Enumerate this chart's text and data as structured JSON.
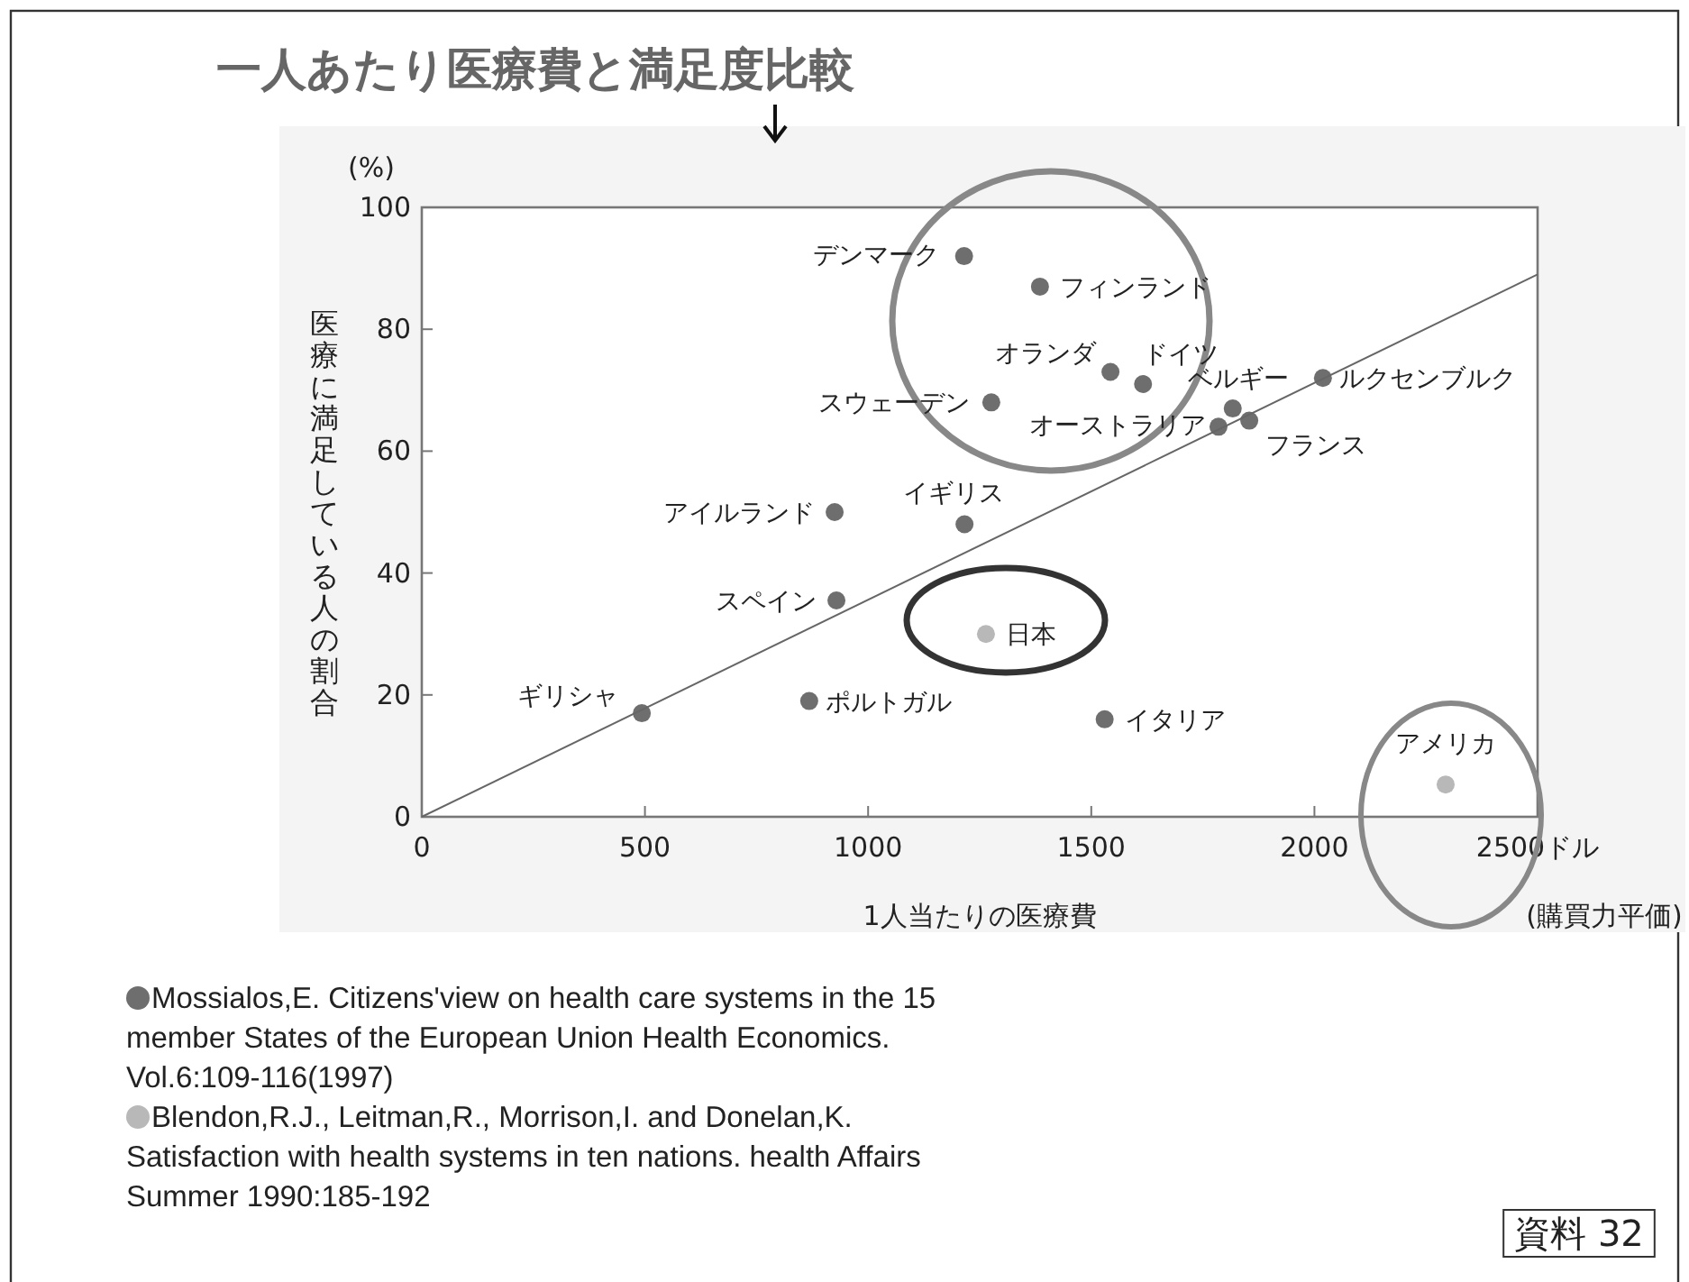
{
  "chart_data": {
    "type": "scatter",
    "title": "一人あたり医療費と満足度比較",
    "xlabel": "1人当たりの医療費",
    "ylabel": "医療に満足している人の割合",
    "xlim": [
      0,
      2500
    ],
    "ylim": [
      0,
      100
    ],
    "xticks": [
      0,
      500,
      1000,
      1500,
      2000,
      {
        "value": 2500,
        "label": "2500ドル"
      }
    ],
    "yticks": [
      0,
      20,
      40,
      60,
      80,
      100
    ],
    "marker": "circle",
    "legend": "bottom",
    "series": [
      {
        "name": "Mossialos,E. Citizens'view on health care systems in the 15 member States of the European Union Health Economics. Vol.6:109-116(1997)",
        "color": "#6e6e6e",
        "x": [
          1215,
          1385,
          1543,
          1276,
          925,
          1216,
          1616,
          1817,
          1785,
          1854,
          2019,
          929,
          493,
          868,
          1530
        ],
        "values": [
          92,
          87,
          73,
          68,
          50,
          48,
          71,
          67,
          64,
          65,
          72,
          35.5,
          17,
          19,
          16
        ]
      },
      {
        "name": "Blendon,R.J., Leitman,R., Morrison,I. and Donelan,K. Satisfaction with health systems in ten nations. health Affairs Summer 1990:185-192",
        "color": "#b8b8b8",
        "x": [
          1264,
          2294
        ],
        "values": [
          30,
          5.3
        ]
      },
      {
        "type": "line",
        "marker": "none",
        "color": "#666666",
        "x": [
          0,
          2500
        ],
        "values": [
          0,
          89
        ]
      }
    ],
    "annotations": [
      "(%)",
      "(購買力平価)",
      "資料 32",
      {
        "text": "デンマーク",
        "x": 1215,
        "y": 92
      },
      {
        "text": "フィンランド",
        "x": 1385,
        "y": 87
      },
      {
        "text": "オランダ",
        "x": 1543,
        "y": 73
      },
      {
        "text": "スウェーデン",
        "x": 1276,
        "y": 68
      },
      {
        "text": "アイルランド",
        "x": 925,
        "y": 50
      },
      {
        "text": "イギリス",
        "x": 1216,
        "y": 48
      },
      {
        "text": "ドイツ",
        "x": 1616,
        "y": 71
      },
      {
        "text": "ベルギー",
        "x": 1817,
        "y": 67
      },
      {
        "text": "オーストラリア",
        "x": 1785,
        "y": 64
      },
      {
        "text": "フランス",
        "x": 1854,
        "y": 65
      },
      {
        "text": "ルクセンブルク",
        "x": 2019,
        "y": 72
      },
      {
        "text": "スペイン",
        "x": 929,
        "y": 35.5
      },
      {
        "text": "日本",
        "x": 1264,
        "y": 30
      },
      {
        "text": "ギリシャ",
        "x": 493,
        "y": 17
      },
      {
        "text": "ポルトガル",
        "x": 868,
        "y": 19
      },
      {
        "text": "イタリア",
        "x": 1530,
        "y": 16
      },
      {
        "text": "アメリカ",
        "x": 2294,
        "y": 5.3
      }
    ]
  }
}
